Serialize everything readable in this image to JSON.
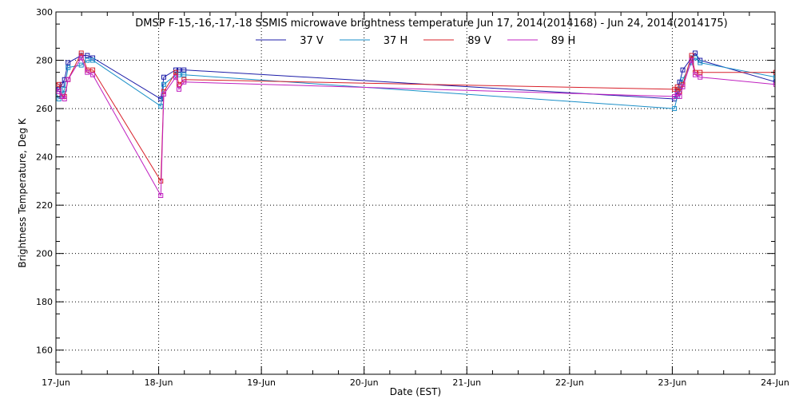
{
  "chart_data": {
    "type": "line",
    "title": "DMSP F-15,-16,-17,-18 SSMIS microwave brightness temperature Jun 17, 2014(2014168) - Jun 24, 2014(2014175)",
    "xlabel": "Date (EST)",
    "ylabel": "Brightness Temperature, Deg K",
    "xlim": [
      "2014-06-17T00:00",
      "2014-06-24T00:00"
    ],
    "ylim": [
      150,
      300
    ],
    "x_ticks": [
      "17-Jun",
      "18-Jun",
      "19-Jun",
      "20-Jun",
      "21-Jun",
      "22-Jun",
      "23-Jun",
      "24-Jun"
    ],
    "y_ticks": [
      160,
      180,
      200,
      220,
      240,
      260,
      280,
      300
    ],
    "grid": true,
    "legend_position": "top-center",
    "series": [
      {
        "name": "37 V",
        "color": "#1c1ca8",
        "points": [
          [
            "2014-06-16T23:30",
            269
          ],
          [
            "2014-06-17T00:42",
            268
          ],
          [
            "2014-06-17T01:26",
            270
          ],
          [
            "2014-06-17T02:00",
            272
          ],
          [
            "2014-06-17T02:50",
            279
          ],
          [
            "2014-06-17T05:55",
            282
          ],
          [
            "2014-06-17T07:20",
            282
          ],
          [
            "2014-06-17T08:36",
            281
          ],
          [
            "2014-06-18T00:30",
            264
          ],
          [
            "2014-06-18T01:12",
            273
          ],
          [
            "2014-06-18T04:00",
            276
          ],
          [
            "2014-06-18T04:45",
            276
          ],
          [
            "2014-06-18T05:55",
            276
          ],
          [
            "2014-06-23T00:30",
            264
          ],
          [
            "2014-06-23T01:10",
            267
          ],
          [
            "2014-06-23T01:43",
            271
          ],
          [
            "2014-06-23T02:27",
            276
          ],
          [
            "2014-06-23T04:30",
            281
          ],
          [
            "2014-06-23T05:20",
            283
          ],
          [
            "2014-06-23T06:30",
            280
          ],
          [
            "2014-06-24T00:10",
            271
          ]
        ]
      },
      {
        "name": "37 H",
        "color": "#1a8fc8",
        "points": [
          [
            "2014-06-16T23:30",
            268
          ],
          [
            "2014-06-17T00:42",
            264
          ],
          [
            "2014-06-17T01:26",
            266
          ],
          [
            "2014-06-17T02:00",
            268
          ],
          [
            "2014-06-17T02:50",
            277
          ],
          [
            "2014-06-17T05:55",
            278
          ],
          [
            "2014-06-17T07:20",
            280
          ],
          [
            "2014-06-17T08:36",
            280
          ],
          [
            "2014-06-18T00:30",
            261
          ],
          [
            "2014-06-18T01:12",
            270
          ],
          [
            "2014-06-18T04:00",
            274
          ],
          [
            "2014-06-18T04:45",
            274
          ],
          [
            "2014-06-18T05:55",
            274
          ],
          [
            "2014-06-23T00:30",
            260
          ],
          [
            "2014-06-23T01:10",
            265
          ],
          [
            "2014-06-23T01:43",
            268
          ],
          [
            "2014-06-23T02:27",
            272
          ],
          [
            "2014-06-23T04:30",
            279
          ],
          [
            "2014-06-23T05:20",
            281
          ],
          [
            "2014-06-23T06:30",
            279
          ],
          [
            "2014-06-24T00:10",
            273
          ]
        ]
      },
      {
        "name": "89 V",
        "color": "#d8202a",
        "points": [
          [
            "2014-06-16T23:30",
            271
          ],
          [
            "2014-06-17T00:42",
            270
          ],
          [
            "2014-06-17T01:26",
            265
          ],
          [
            "2014-06-17T02:00",
            265
          ],
          [
            "2014-06-17T02:50",
            272
          ],
          [
            "2014-06-17T05:55",
            283
          ],
          [
            "2014-06-17T07:20",
            276
          ],
          [
            "2014-06-17T08:36",
            276
          ],
          [
            "2014-06-18T00:30",
            230
          ],
          [
            "2014-06-18T01:12",
            267
          ],
          [
            "2014-06-18T04:00",
            275
          ],
          [
            "2014-06-18T04:45",
            270
          ],
          [
            "2014-06-18T05:55",
            272
          ],
          [
            "2014-06-23T00:30",
            268
          ],
          [
            "2014-06-23T01:10",
            269
          ],
          [
            "2014-06-23T01:43",
            267
          ],
          [
            "2014-06-23T02:27",
            270
          ],
          [
            "2014-06-23T04:30",
            282
          ],
          [
            "2014-06-23T05:20",
            275
          ],
          [
            "2014-06-23T06:30",
            275
          ],
          [
            "2014-06-24T00:10",
            275
          ]
        ]
      },
      {
        "name": "89 H",
        "color": "#c020c0",
        "points": [
          [
            "2014-06-16T23:30",
            270
          ],
          [
            "2014-06-17T00:42",
            267
          ],
          [
            "2014-06-17T01:26",
            265
          ],
          [
            "2014-06-17T02:00",
            264
          ],
          [
            "2014-06-17T02:50",
            272
          ],
          [
            "2014-06-17T05:55",
            281
          ],
          [
            "2014-06-17T07:20",
            275
          ],
          [
            "2014-06-17T08:36",
            274
          ],
          [
            "2014-06-18T00:30",
            224
          ],
          [
            "2014-06-18T01:12",
            266
          ],
          [
            "2014-06-18T04:00",
            273
          ],
          [
            "2014-06-18T04:45",
            268
          ],
          [
            "2014-06-18T05:55",
            271
          ],
          [
            "2014-06-23T00:30",
            265
          ],
          [
            "2014-06-23T01:10",
            266
          ],
          [
            "2014-06-23T01:43",
            265
          ],
          [
            "2014-06-23T02:27",
            269
          ],
          [
            "2014-06-23T04:30",
            280
          ],
          [
            "2014-06-23T05:20",
            274
          ],
          [
            "2014-06-23T06:30",
            273
          ],
          [
            "2014-06-24T00:10",
            270
          ]
        ]
      }
    ]
  }
}
